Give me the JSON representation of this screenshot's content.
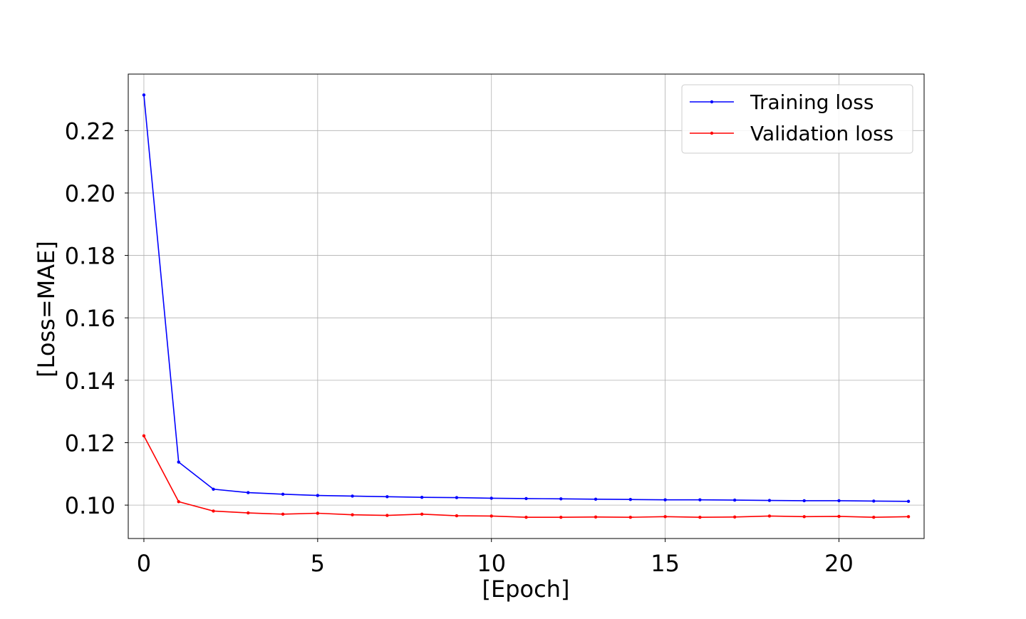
{
  "chart_data": {
    "type": "line",
    "title": "",
    "xlabel": "[Epoch]",
    "ylabel": "[Loss=MAE]",
    "x": [
      0,
      1,
      2,
      3,
      4,
      5,
      6,
      7,
      8,
      9,
      10,
      11,
      12,
      13,
      14,
      15,
      16,
      17,
      18,
      19,
      20,
      21,
      22
    ],
    "series": [
      {
        "name": "Training loss",
        "color": "#0000ff",
        "values": [
          0.2314,
          0.1138,
          0.1051,
          0.104,
          0.1035,
          0.1031,
          0.1029,
          0.1027,
          0.1025,
          0.1024,
          0.1022,
          0.1021,
          0.102,
          0.1019,
          0.1018,
          0.1017,
          0.1017,
          0.1016,
          0.1015,
          0.1014,
          0.1014,
          0.1013,
          0.1012
        ]
      },
      {
        "name": "Validation loss",
        "color": "#ff0000",
        "values": [
          0.1222,
          0.1011,
          0.0981,
          0.0975,
          0.0971,
          0.0974,
          0.0969,
          0.0967,
          0.0971,
          0.0966,
          0.0965,
          0.0961,
          0.0961,
          0.0962,
          0.0961,
          0.0963,
          0.0961,
          0.0962,
          0.0965,
          0.0963,
          0.0964,
          0.0961,
          0.0963
        ]
      }
    ],
    "xlim": [
      -0.45,
      22.45
    ],
    "ylim": [
      0.0893,
      0.2381
    ],
    "xticks": [
      0,
      5,
      10,
      15,
      20
    ],
    "xtick_labels": [
      "0",
      "5",
      "10",
      "15",
      "20"
    ],
    "yticks": [
      0.1,
      0.12,
      0.14,
      0.16,
      0.18,
      0.2,
      0.22
    ],
    "ytick_labels": [
      "0.10",
      "0.12",
      "0.14",
      "0.16",
      "0.18",
      "0.20",
      "0.22"
    ],
    "grid": true,
    "legend_position": "top-right"
  }
}
